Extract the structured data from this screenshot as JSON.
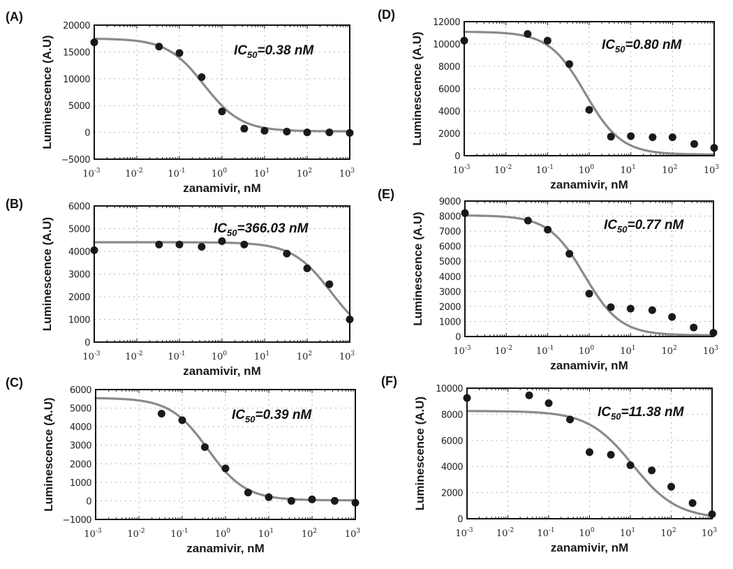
{
  "figure": {
    "common_xlabel": "zanamivir, nM",
    "common_ylabel": "Luminescence (A.U)",
    "colors": {
      "curve": "#8a8a8a",
      "points": "#1a1a1a",
      "grid": "#b5b5b5",
      "axis": "#111111"
    }
  },
  "chart_data": [
    {
      "type": "scatter",
      "panel": "(A)",
      "ic50_prefix": "IC",
      "ic50_sub": "50",
      "ic50_value": "=0.38 nM",
      "xlabel": "zanamivir, nM",
      "ylabel": "Luminescence (A.U)",
      "xscale": "log",
      "xlim": [
        0.001,
        1000
      ],
      "ylim": [
        -5000,
        20000
      ],
      "xticks": [
        "10-3",
        "10-2",
        "10-1",
        "100",
        "101",
        "102",
        "103"
      ],
      "yticks": [
        -5000,
        0,
        5000,
        10000,
        15000,
        20000
      ],
      "ytick_labels": [
        "-5000",
        "0",
        "5000",
        "10000",
        "15000",
        "20000"
      ],
      "grid": true,
      "points": {
        "x": [
          0.001,
          0.0333,
          0.1,
          0.333,
          1,
          3.33,
          10,
          33.3,
          100,
          333,
          1000
        ],
        "y": [
          16800,
          16000,
          14800,
          10300,
          3900,
          700,
          300,
          150,
          0,
          0,
          -100
        ]
      },
      "fit": {
        "top": 17500,
        "bottom": 200,
        "ic50": 0.38,
        "hill": 1.0
      }
    },
    {
      "type": "scatter",
      "panel": "(B)",
      "ic50_prefix": "IC",
      "ic50_sub": "50",
      "ic50_value": "=366.03 nM",
      "xlabel": "zanamivir, nM",
      "ylabel": "Luminescence (A.U)",
      "xscale": "log",
      "xlim": [
        0.001,
        1000
      ],
      "ylim": [
        0,
        6000
      ],
      "xticks": [
        "10-3",
        "10-2",
        "10-1",
        "100",
        "101",
        "102",
        "103"
      ],
      "yticks": [
        0,
        1000,
        2000,
        3000,
        4000,
        5000,
        6000
      ],
      "ytick_labels": [
        "0",
        "1000",
        "2000",
        "3000",
        "4000",
        "5000",
        "6000"
      ],
      "grid": true,
      "points": {
        "x": [
          0.001,
          0.0333,
          0.1,
          0.333,
          1,
          3.33,
          33.3,
          100,
          333,
          1000
        ],
        "y": [
          4050,
          4300,
          4300,
          4200,
          4450,
          4300,
          3900,
          3250,
          2550,
          1000
        ]
      },
      "fit": {
        "top": 4400,
        "bottom": 0,
        "ic50": 366.03,
        "hill": 0.95
      }
    },
    {
      "type": "scatter",
      "panel": "(C)",
      "ic50_prefix": "IC",
      "ic50_sub": "50",
      "ic50_value": "=0.39 nM",
      "xlabel": "zanamivir, nM",
      "ylabel": "Luminescence (A.U)",
      "xscale": "log",
      "xlim": [
        0.001,
        1000
      ],
      "ylim": [
        -1000,
        6000
      ],
      "xticks": [
        "10-3",
        "10-2",
        "10-1",
        "100",
        "101",
        "102",
        "103"
      ],
      "yticks": [
        -1000,
        0,
        1000,
        2000,
        3000,
        4000,
        5000,
        6000
      ],
      "ytick_labels": [
        "-1000",
        "0",
        "1000",
        "2000",
        "3000",
        "4000",
        "5000",
        "6000"
      ],
      "grid": true,
      "points": {
        "x": [
          0.0333,
          0.1,
          0.333,
          1,
          3.33,
          10,
          33.3,
          100,
          333,
          1000
        ],
        "y": [
          4700,
          4350,
          2900,
          1750,
          450,
          200,
          0,
          80,
          0,
          -100
        ]
      },
      "fit": {
        "top": 5550,
        "bottom": 30,
        "ic50": 0.39,
        "hill": 1.0
      }
    },
    {
      "type": "scatter",
      "panel": "(D)",
      "ic50_prefix": "IC",
      "ic50_sub": "50",
      "ic50_value": "=0.80 nM",
      "xlabel": "zanamivir, nM",
      "ylabel": "Luminescence (A.U)",
      "xscale": "log",
      "xlim": [
        0.001,
        1000
      ],
      "ylim": [
        0,
        12000
      ],
      "xticks": [
        "10-3",
        "10-2",
        "10-1",
        "100",
        "101",
        "102",
        "103"
      ],
      "yticks": [
        0,
        2000,
        4000,
        6000,
        8000,
        10000,
        12000
      ],
      "ytick_labels": [
        "0",
        "2000",
        "4000",
        "6000",
        "8000",
        "10000",
        "12000"
      ],
      "grid": true,
      "points": {
        "x": [
          0.001,
          0.0333,
          0.1,
          0.333,
          1,
          3.33,
          10,
          33.3,
          100,
          333,
          1000
        ],
        "y": [
          10300,
          10900,
          10300,
          8200,
          4100,
          1700,
          1750,
          1650,
          1650,
          1050,
          700
        ]
      },
      "fit": {
        "top": 11100,
        "bottom": 100,
        "ic50": 0.8,
        "hill": 1.0
      }
    },
    {
      "type": "scatter",
      "panel": "(E)",
      "ic50_prefix": "IC",
      "ic50_sub": "50",
      "ic50_value": "=0.77 nM",
      "xlabel": "zanamivir, nM",
      "ylabel": "Luminescence (A.U)",
      "xscale": "log",
      "xlim": [
        0.001,
        1000
      ],
      "ylim": [
        0,
        9000
      ],
      "xticks": [
        "10-3",
        "10-2",
        "10-1",
        "100",
        "101",
        "102",
        "103"
      ],
      "yticks": [
        0,
        1000,
        2000,
        3000,
        4000,
        5000,
        6000,
        7000,
        8000,
        9000
      ],
      "ytick_labels": [
        "0",
        "1000",
        "2000",
        "3000",
        "4000",
        "5000",
        "6000",
        "7000",
        "8000",
        "9000"
      ],
      "grid": true,
      "points": {
        "x": [
          0.001,
          0.0333,
          0.1,
          0.333,
          1,
          3.33,
          10,
          33.3,
          100,
          333,
          1000
        ],
        "y": [
          8200,
          7700,
          7100,
          5500,
          2850,
          1950,
          1850,
          1750,
          1300,
          600,
          250
        ]
      },
      "fit": {
        "top": 8050,
        "bottom": 80,
        "ic50": 0.77,
        "hill": 1.0
      }
    },
    {
      "type": "scatter",
      "panel": "(F)",
      "ic50_prefix": "IC",
      "ic50_sub": "50",
      "ic50_value": "=11.38 nM",
      "xlabel": "zanamivir, nM",
      "ylabel": "Luminescence (A.U)",
      "xscale": "log",
      "xlim": [
        0.001,
        1000
      ],
      "ylim": [
        0,
        10000
      ],
      "xticks": [
        "10-3",
        "10-2",
        "10-1",
        "100",
        "101",
        "102",
        "103"
      ],
      "yticks": [
        0,
        2000,
        4000,
        6000,
        8000,
        10000
      ],
      "ytick_labels": [
        "0",
        "2000",
        "4000",
        "6000",
        "8000",
        "10000"
      ],
      "grid": true,
      "points": {
        "x": [
          0.001,
          0.0333,
          0.1,
          0.333,
          1,
          3.33,
          10,
          33.3,
          100,
          333,
          1000
        ],
        "y": [
          9250,
          9450,
          8850,
          7600,
          5100,
          4900,
          4100,
          3700,
          2450,
          1200,
          350
        ]
      },
      "fit": {
        "top": 8250,
        "bottom": 0,
        "ic50": 11.38,
        "hill": 0.8
      }
    }
  ]
}
